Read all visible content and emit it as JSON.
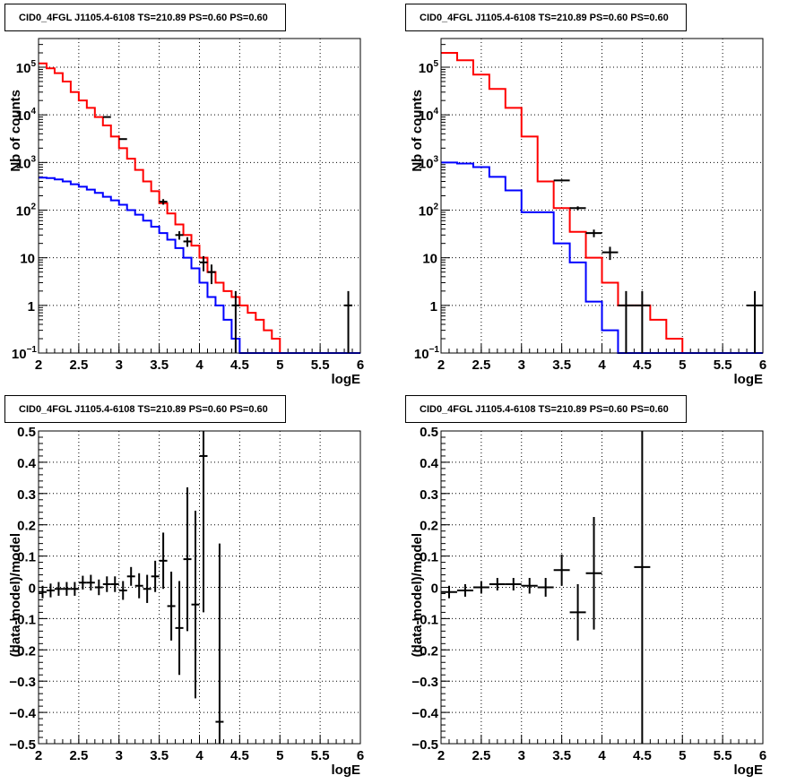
{
  "chart_data": [
    {
      "type": "histogram",
      "title": "CID0_4FGL J1105.4-6108 TS=210.89 PS=0.60 PS=0.60",
      "xlabel": "logE",
      "ylabel": "Nb of counts",
      "xlim": [
        2,
        6
      ],
      "ylim": [
        0.1,
        400000
      ],
      "yscale": "log",
      "grid": true,
      "xticks": [
        "2",
        "2.5",
        "3",
        "3.5",
        "4",
        "4.5",
        "5",
        "5.5",
        "6"
      ],
      "yticks": [
        {
          "label": "10",
          "exp": "−1",
          "value": 0.1
        },
        {
          "label": "1",
          "exp": "",
          "value": 1
        },
        {
          "label": "10",
          "exp": "",
          "value": 10
        },
        {
          "label": "10",
          "exp": "2",
          "value": 100
        },
        {
          "label": "10",
          "exp": "3",
          "value": 1000
        },
        {
          "label": "10",
          "exp": "4",
          "value": 10000
        },
        {
          "label": "10",
          "exp": "5",
          "value": 100000
        }
      ],
      "bin_edges": [
        2.0,
        2.1,
        2.2,
        2.3,
        2.4,
        2.5,
        2.6,
        2.7,
        2.8,
        2.9,
        3.0,
        3.1,
        3.2,
        3.3,
        3.4,
        3.5,
        3.6,
        3.7,
        3.8,
        3.9,
        4.0,
        4.1,
        4.2,
        4.3,
        4.4,
        4.5,
        4.6,
        4.7,
        4.8,
        4.9,
        5.0,
        5.1,
        5.2,
        5.3,
        5.4,
        5.5,
        5.6,
        5.7,
        5.8,
        5.9,
        6.0
      ],
      "series": [
        {
          "color": "#ff0000",
          "values": [
            120000,
            95000,
            75000,
            50000,
            30000,
            20000,
            14000,
            9000,
            6000,
            3500,
            2000,
            1200,
            700,
            400,
            250,
            140,
            85,
            50,
            30,
            18,
            10,
            5,
            3,
            2,
            1.5,
            1,
            0.7,
            0.5,
            0.3,
            0.2,
            0.1,
            0.1,
            0.1,
            0.1,
            0.1,
            0.1,
            0.1,
            0.1,
            0.1,
            0.1
          ]
        },
        {
          "color": "#0000ff",
          "values": [
            480,
            470,
            440,
            400,
            350,
            310,
            270,
            230,
            190,
            160,
            130,
            100,
            80,
            60,
            45,
            33,
            24,
            16,
            10,
            6,
            3,
            1.5,
            1,
            0.5,
            0.2,
            0.1,
            0.1,
            0.1,
            0.1,
            0.1,
            0.1,
            0.1,
            0.1,
            0.1,
            0.1,
            0.1,
            0.1,
            0.1,
            0.1,
            0.1
          ]
        }
      ],
      "points": [
        {
          "x": 2.85,
          "y": 9000,
          "xerr": 0.05,
          "lo": 8800,
          "hi": 9200
        },
        {
          "x": 3.05,
          "y": 3100,
          "xerr": 0.05,
          "lo": 3000,
          "hi": 3200
        },
        {
          "x": 3.55,
          "y": 150,
          "xerr": 0.05,
          "lo": 130,
          "hi": 170
        },
        {
          "x": 3.75,
          "y": 30,
          "xerr": 0.05,
          "lo": 24,
          "hi": 36
        },
        {
          "x": 3.85,
          "y": 22,
          "xerr": 0.05,
          "lo": 17,
          "hi": 27
        },
        {
          "x": 4.05,
          "y": 8,
          "xerr": 0.05,
          "lo": 5.2,
          "hi": 10.8
        },
        {
          "x": 4.15,
          "y": 5,
          "xerr": 0.05,
          "lo": 2.8,
          "hi": 7.2
        },
        {
          "x": 4.45,
          "y": 1,
          "xerr": 0.05,
          "lo": 0.1,
          "hi": 2
        },
        {
          "x": 5.85,
          "y": 1,
          "xerr": 0.05,
          "lo": 0.1,
          "hi": 2
        }
      ]
    },
    {
      "type": "histogram",
      "title": "CID0_4FGL J1105.4-6108 TS=210.89 PS=0.60 PS=0.60",
      "xlabel": "logE",
      "ylabel": "Nb of counts",
      "xlim": [
        2,
        6
      ],
      "ylim": [
        0.1,
        400000
      ],
      "yscale": "log",
      "grid": true,
      "xticks": [
        "2",
        "2.5",
        "3",
        "3.5",
        "4",
        "4.5",
        "5",
        "5.5",
        "6"
      ],
      "yticks": [
        {
          "label": "10",
          "exp": "−1",
          "value": 0.1
        },
        {
          "label": "1",
          "exp": "",
          "value": 1
        },
        {
          "label": "10",
          "exp": "",
          "value": 10
        },
        {
          "label": "10",
          "exp": "2",
          "value": 100
        },
        {
          "label": "10",
          "exp": "3",
          "value": 1000
        },
        {
          "label": "10",
          "exp": "4",
          "value": 10000
        },
        {
          "label": "10",
          "exp": "5",
          "value": 100000
        }
      ],
      "bin_edges": [
        2.0,
        2.2,
        2.4,
        2.6,
        2.8,
        3.0,
        3.2,
        3.4,
        3.6,
        3.8,
        4.0,
        4.2,
        4.4,
        4.6,
        4.8,
        5.0,
        5.2,
        5.4,
        5.6,
        5.8,
        6.0
      ],
      "series": [
        {
          "color": "#ff0000",
          "values": [
            200000,
            140000,
            70000,
            35000,
            14000,
            3500,
            400,
            110,
            35,
            10,
            3,
            1,
            1,
            0.5,
            0.2,
            0.1,
            0.1,
            0.1,
            0.1,
            0.1
          ]
        },
        {
          "color": "#0000ff",
          "values": [
            1000,
            950,
            800,
            500,
            260,
            90,
            90,
            20,
            8,
            1.2,
            0.3,
            0.1,
            0.1,
            0.1,
            0.1,
            0.1,
            0.1,
            0.1,
            0.1,
            0.1
          ]
        }
      ],
      "points": [
        {
          "x": 3.5,
          "y": 420,
          "xerr": 0.1,
          "lo": 400,
          "hi": 440
        },
        {
          "x": 3.7,
          "y": 110,
          "xerr": 0.1,
          "lo": 100,
          "hi": 120
        },
        {
          "x": 3.9,
          "y": 33,
          "xerr": 0.1,
          "lo": 27,
          "hi": 39
        },
        {
          "x": 4.1,
          "y": 13,
          "xerr": 0.1,
          "lo": 9,
          "hi": 17
        },
        {
          "x": 4.3,
          "y": 1,
          "xerr": 0.1,
          "lo": 0.1,
          "hi": 2
        },
        {
          "x": 4.5,
          "y": 1,
          "xerr": 0.1,
          "lo": 0.1,
          "hi": 2
        },
        {
          "x": 5.9,
          "y": 1,
          "xerr": 0.1,
          "lo": 0.1,
          "hi": 2
        }
      ]
    },
    {
      "type": "scatter",
      "title": "CID0_4FGL J1105.4-6108 TS=210.89 PS=0.60 PS=0.60",
      "xlabel": "logE",
      "ylabel": "(data-model)/model",
      "xlim": [
        2,
        6
      ],
      "ylim": [
        -0.5,
        0.5
      ],
      "yscale": "linear",
      "grid": true,
      "xticks": [
        "2",
        "2.5",
        "3",
        "3.5",
        "4",
        "4.5",
        "5",
        "5.5",
        "6"
      ],
      "yticks": [
        "−0.5",
        "−0.4",
        "−0.3",
        "−0.2",
        "−0.1",
        "0",
        "0.1",
        "0.2",
        "0.3",
        "0.4",
        "0.5"
      ],
      "points": [
        {
          "x": 2.05,
          "y": -0.015,
          "xerr": 0.05,
          "err": 0.02
        },
        {
          "x": 2.15,
          "y": -0.01,
          "xerr": 0.05,
          "err": 0.022
        },
        {
          "x": 2.25,
          "y": -0.005,
          "xerr": 0.05,
          "err": 0.022
        },
        {
          "x": 2.35,
          "y": -0.005,
          "xerr": 0.05,
          "err": 0.022
        },
        {
          "x": 2.45,
          "y": -0.005,
          "xerr": 0.05,
          "err": 0.022
        },
        {
          "x": 2.55,
          "y": 0.015,
          "xerr": 0.05,
          "err": 0.022
        },
        {
          "x": 2.65,
          "y": 0.015,
          "xerr": 0.05,
          "err": 0.025
        },
        {
          "x": 2.75,
          "y": 0.0,
          "xerr": 0.05,
          "err": 0.025
        },
        {
          "x": 2.85,
          "y": 0.01,
          "xerr": 0.05,
          "err": 0.025
        },
        {
          "x": 2.95,
          "y": 0.01,
          "xerr": 0.05,
          "err": 0.025
        },
        {
          "x": 3.05,
          "y": -0.01,
          "xerr": 0.05,
          "err": 0.03
        },
        {
          "x": 3.15,
          "y": 0.035,
          "xerr": 0.05,
          "err": 0.03
        },
        {
          "x": 3.25,
          "y": 0.005,
          "xerr": 0.05,
          "err": 0.04
        },
        {
          "x": 3.35,
          "y": -0.005,
          "xerr": 0.05,
          "err": 0.045
        },
        {
          "x": 3.45,
          "y": 0.035,
          "xerr": 0.05,
          "err": 0.05
        },
        {
          "x": 3.55,
          "y": 0.085,
          "xerr": 0.05,
          "err": 0.09
        },
        {
          "x": 3.65,
          "y": -0.06,
          "xerr": 0.05,
          "err": 0.11
        },
        {
          "x": 3.75,
          "y": -0.13,
          "xerr": 0.05,
          "err": 0.15
        },
        {
          "x": 3.85,
          "y": 0.09,
          "xerr": 0.05,
          "err": 0.23
        },
        {
          "x": 3.95,
          "y": -0.055,
          "xerr": 0.05,
          "err": 0.3
        },
        {
          "x": 4.05,
          "y": 0.42,
          "xerr": 0.05,
          "err": 0.5
        },
        {
          "x": 4.25,
          "y": -0.43,
          "xerr": 0.05,
          "err": 0.57
        }
      ]
    },
    {
      "type": "scatter",
      "title": "CID0_4FGL J1105.4-6108 TS=210.89 PS=0.60 PS=0.60",
      "xlabel": "logE",
      "ylabel": "(data-model)/model",
      "xlim": [
        2,
        6
      ],
      "ylim": [
        -0.5,
        0.5
      ],
      "yscale": "linear",
      "grid": true,
      "xticks": [
        "2",
        "2.5",
        "3",
        "3.5",
        "4",
        "4.5",
        "5",
        "5.5",
        "6"
      ],
      "yticks": [
        "−0.5",
        "−0.4",
        "−0.3",
        "−0.2",
        "−0.1",
        "0",
        "0.1",
        "0.2",
        "0.3",
        "0.4",
        "0.5"
      ],
      "points": [
        {
          "x": 2.1,
          "y": -0.015,
          "xerr": 0.1,
          "err": 0.02
        },
        {
          "x": 2.3,
          "y": -0.01,
          "xerr": 0.1,
          "err": 0.02
        },
        {
          "x": 2.5,
          "y": 0.0,
          "xerr": 0.1,
          "err": 0.02
        },
        {
          "x": 2.7,
          "y": 0.01,
          "xerr": 0.1,
          "err": 0.02
        },
        {
          "x": 2.9,
          "y": 0.01,
          "xerr": 0.1,
          "err": 0.02
        },
        {
          "x": 3.1,
          "y": 0.005,
          "xerr": 0.1,
          "err": 0.025
        },
        {
          "x": 3.3,
          "y": 0.0,
          "xerr": 0.1,
          "err": 0.03
        },
        {
          "x": 3.5,
          "y": 0.055,
          "xerr": 0.1,
          "err": 0.05
        },
        {
          "x": 3.7,
          "y": -0.08,
          "xerr": 0.1,
          "err": 0.09
        },
        {
          "x": 3.9,
          "y": 0.045,
          "xerr": 0.1,
          "err": 0.18
        },
        {
          "x": 4.5,
          "y": 0.065,
          "xerr": 0.1,
          "err": 0.6
        }
      ]
    }
  ]
}
